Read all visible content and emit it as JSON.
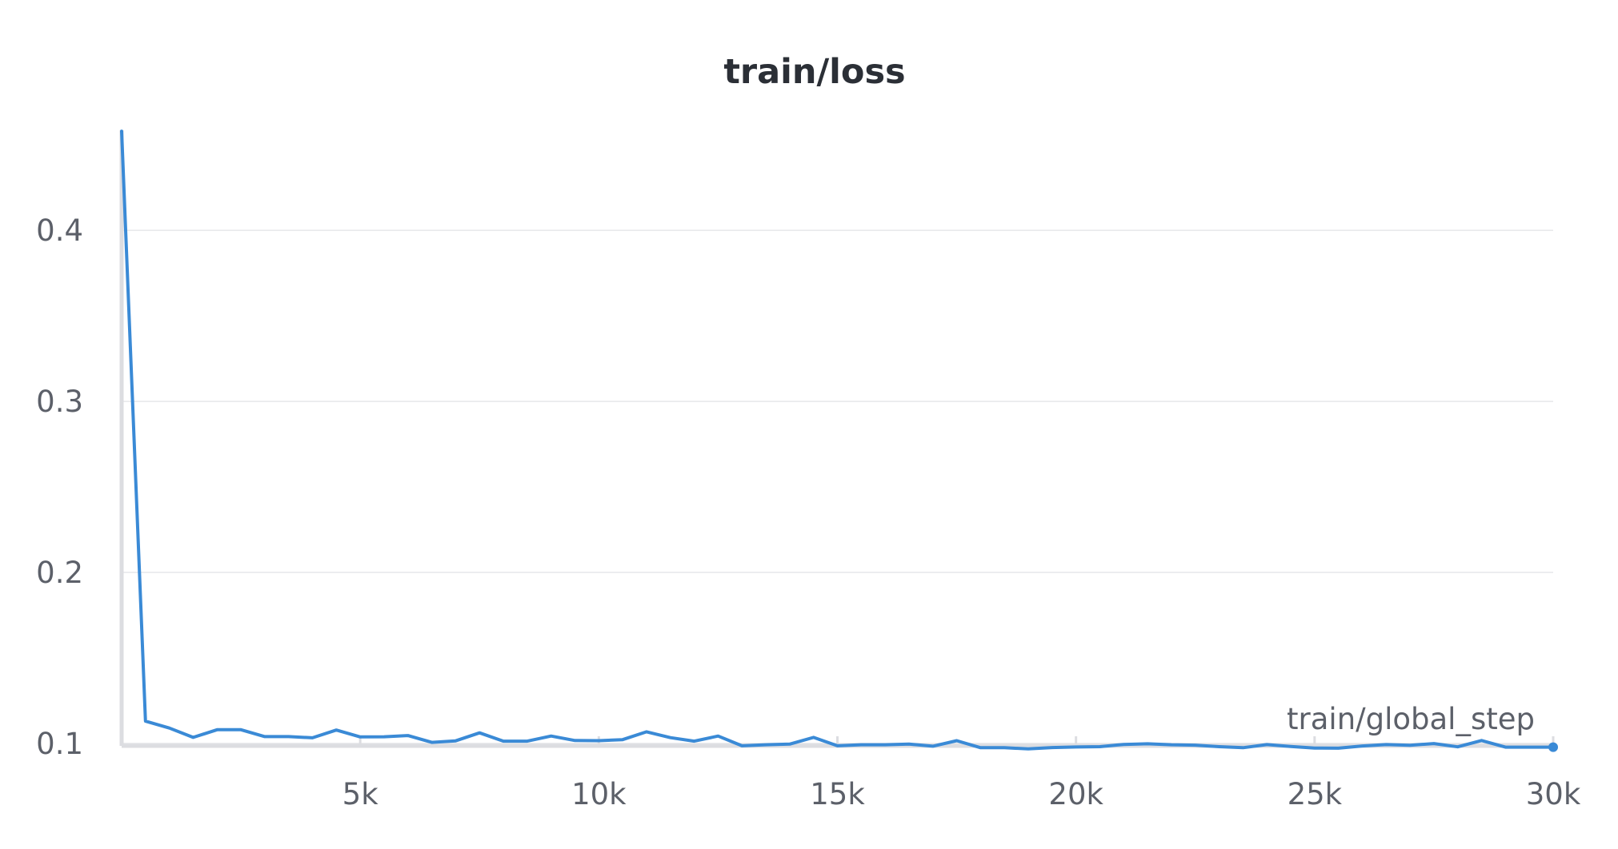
{
  "chart_data": {
    "type": "line",
    "title": "train/loss",
    "xlabel": "train/global_step",
    "ylabel": "",
    "xlim": [
      0,
      30000
    ],
    "ylim": [
      0.0995,
      0.4585
    ],
    "x_ticks": [
      {
        "value": 5000,
        "label": "5k"
      },
      {
        "value": 10000,
        "label": "10k"
      },
      {
        "value": 15000,
        "label": "15k"
      },
      {
        "value": 20000,
        "label": "20k"
      },
      {
        "value": 25000,
        "label": "25k"
      },
      {
        "value": 30000,
        "label": "30k"
      }
    ],
    "y_ticks": [
      {
        "value": 0.1,
        "label": "0.1"
      },
      {
        "value": 0.2,
        "label": "0.2"
      },
      {
        "value": 0.3,
        "label": "0.3"
      },
      {
        "value": 0.4,
        "label": "0.4"
      }
    ],
    "grid": true,
    "legend": "none",
    "colors": {
      "series": "#3a8ad6"
    },
    "series": [
      {
        "x": [
          0,
          500,
          1000,
          1500,
          2000,
          2500,
          3000,
          3500,
          4000,
          4500,
          5000,
          5500,
          6000,
          6500,
          7000,
          7500,
          8000,
          8500,
          9000,
          9500,
          10000,
          10500,
          11000,
          11500,
          12000,
          12500,
          13000,
          13500,
          14000,
          14500,
          15000,
          15500,
          16000,
          16500,
          17000,
          17500,
          18000,
          18500,
          19000,
          19500,
          20000,
          20500,
          21000,
          21500,
          22000,
          22500,
          23000,
          23500,
          24000,
          24500,
          25000,
          25500,
          26000,
          26500,
          27000,
          27500,
          28000,
          28500,
          29000,
          29500,
          30000
        ],
        "values": [
          0.458,
          0.113,
          0.109,
          0.1035,
          0.108,
          0.108,
          0.104,
          0.104,
          0.1033,
          0.1078,
          0.1038,
          0.1039,
          0.1046,
          0.1006,
          0.1015,
          0.1062,
          0.1013,
          0.1013,
          0.1043,
          0.1017,
          0.1016,
          0.1022,
          0.1068,
          0.1034,
          0.1013,
          0.1043,
          0.0986,
          0.0992,
          0.0996,
          0.1035,
          0.0986,
          0.0992,
          0.0992,
          0.0996,
          0.0984,
          0.1016,
          0.0975,
          0.0975,
          0.0968,
          0.0976,
          0.0979,
          0.0981,
          0.0994,
          0.0998,
          0.0992,
          0.099,
          0.0981,
          0.0975,
          0.0993,
          0.0982,
          0.0973,
          0.0972,
          0.0985,
          0.0993,
          0.0989,
          0.0999,
          0.098,
          0.1017,
          0.0978,
          0.0978,
          0.0978
        ]
      }
    ]
  }
}
